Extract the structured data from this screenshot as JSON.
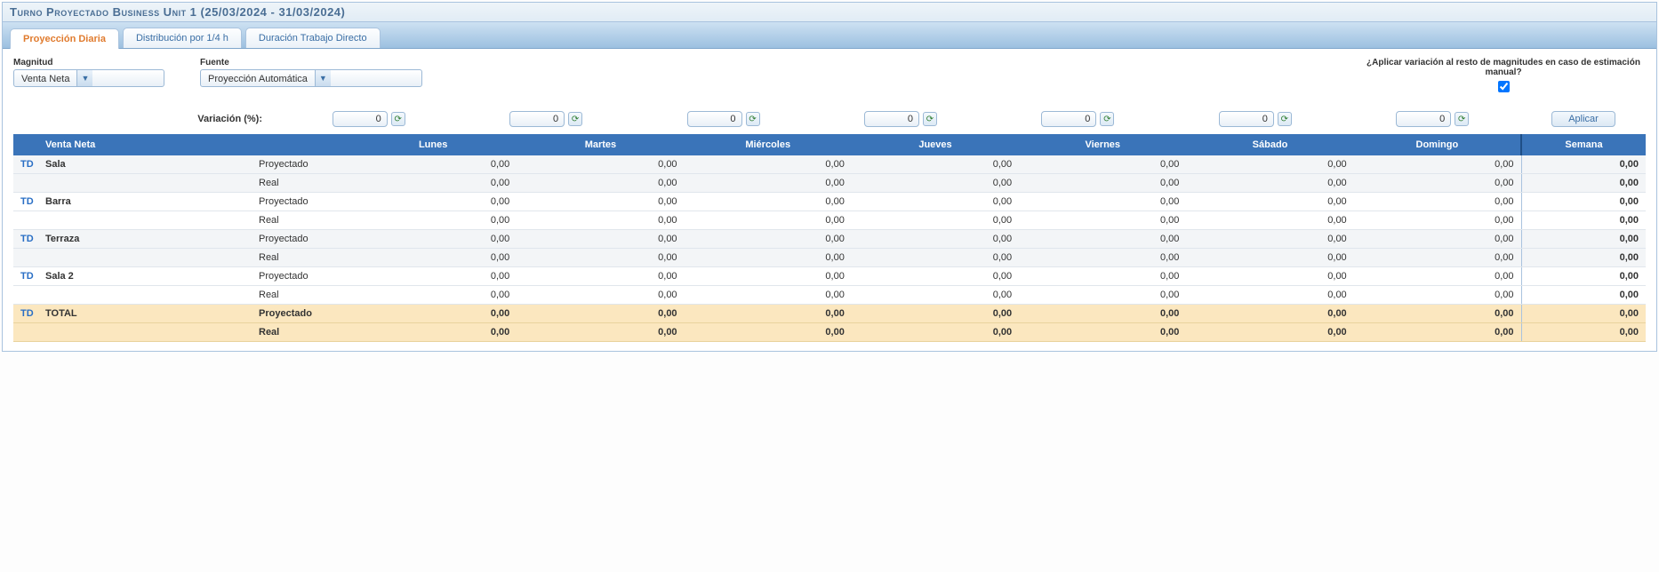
{
  "header": {
    "title": "Turno Proyectado Business Unit 1 (25/03/2024 - 31/03/2024)"
  },
  "tabs": [
    {
      "label": "Proyección Diaria",
      "active": true
    },
    {
      "label": "Distribución por 1/4 h",
      "active": false
    },
    {
      "label": "Duración Trabajo Directo",
      "active": false
    }
  ],
  "controls": {
    "magnitud_label": "Magnitud",
    "magnitud_value": "Venta Neta",
    "fuente_label": "Fuente",
    "fuente_value": "Proyección Automática",
    "apply_rest_label": "¿Aplicar variación al resto de magnitudes en caso de estimación manual?",
    "apply_rest_checked": true
  },
  "variation": {
    "label": "Variación (%):",
    "values": [
      "0",
      "0",
      "0",
      "0",
      "0",
      "0",
      "0"
    ],
    "apply_label": "Aplicar"
  },
  "table": {
    "td_label": "TD",
    "metric_header": "Venta Neta",
    "type_label_proyectado": "Proyectado",
    "type_label_real": "Real",
    "day_headers": [
      "Lunes",
      "Martes",
      "Miércoles",
      "Jueves",
      "Viernes",
      "Sábado",
      "Domingo"
    ],
    "week_header": "Semana",
    "rows": [
      {
        "td": "TD",
        "name": "Sala",
        "alt": true,
        "proyectado": [
          "0,00",
          "0,00",
          "0,00",
          "0,00",
          "0,00",
          "0,00",
          "0,00"
        ],
        "proyectado_week": "0,00",
        "real": [
          "0,00",
          "0,00",
          "0,00",
          "0,00",
          "0,00",
          "0,00",
          "0,00"
        ],
        "real_week": "0,00"
      },
      {
        "td": "TD",
        "name": "Barra",
        "alt": false,
        "proyectado": [
          "0,00",
          "0,00",
          "0,00",
          "0,00",
          "0,00",
          "0,00",
          "0,00"
        ],
        "proyectado_week": "0,00",
        "real": [
          "0,00",
          "0,00",
          "0,00",
          "0,00",
          "0,00",
          "0,00",
          "0,00"
        ],
        "real_week": "0,00"
      },
      {
        "td": "TD",
        "name": "Terraza",
        "alt": true,
        "proyectado": [
          "0,00",
          "0,00",
          "0,00",
          "0,00",
          "0,00",
          "0,00",
          "0,00"
        ],
        "proyectado_week": "0,00",
        "real": [
          "0,00",
          "0,00",
          "0,00",
          "0,00",
          "0,00",
          "0,00",
          "0,00"
        ],
        "real_week": "0,00"
      },
      {
        "td": "TD",
        "name": "Sala 2",
        "alt": false,
        "proyectado": [
          "0,00",
          "0,00",
          "0,00",
          "0,00",
          "0,00",
          "0,00",
          "0,00"
        ],
        "proyectado_week": "0,00",
        "real": [
          "0,00",
          "0,00",
          "0,00",
          "0,00",
          "0,00",
          "0,00",
          "0,00"
        ],
        "real_week": "0,00"
      }
    ],
    "total": {
      "td": "TD",
      "name": "TOTAL",
      "proyectado": [
        "0,00",
        "0,00",
        "0,00",
        "0,00",
        "0,00",
        "0,00",
        "0,00"
      ],
      "proyectado_week": "0,00",
      "real": [
        "0,00",
        "0,00",
        "0,00",
        "0,00",
        "0,00",
        "0,00",
        "0,00"
      ],
      "real_week": "0,00"
    }
  },
  "colors": {
    "header_blue": "#3a74b9",
    "accent_orange": "#e07b2e",
    "total_bg": "#fbe7bf",
    "border": "#a9c3de"
  }
}
